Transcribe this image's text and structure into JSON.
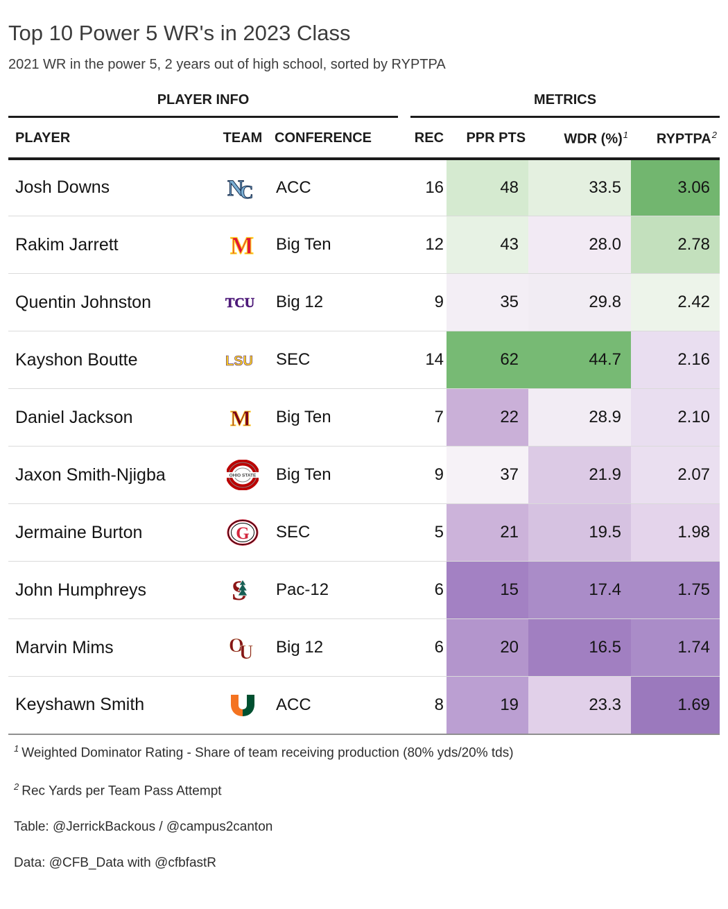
{
  "title": "Top 10 Power 5 WR's in 2023 Class",
  "subtitle": "2021 WR in the power 5, 2 years out of high school, sorted by RYPTPA",
  "table": {
    "group_headers": [
      {
        "id": "player-info",
        "label": "PLAYER INFO"
      },
      {
        "id": "metrics",
        "label": "METRICS"
      }
    ],
    "columns": [
      {
        "id": "player",
        "label": "PLAYER"
      },
      {
        "id": "team",
        "label": "TEAM"
      },
      {
        "id": "conference",
        "label": "CONFERENCE"
      },
      {
        "id": "rec",
        "label": "REC"
      },
      {
        "id": "ppr_pts",
        "label": "PPR PTS"
      },
      {
        "id": "wdr",
        "label": "WDR (%)",
        "sup": "1"
      },
      {
        "id": "ryptpa",
        "label": "RYPTPA",
        "sup": "2"
      }
    ],
    "rows": [
      {
        "player": "Josh Downs",
        "team": "North Carolina",
        "logo": "unc-logo",
        "conference": "ACC",
        "rec": "16",
        "ppr_pts": "48",
        "ppr_bg": "#d5ead0",
        "wdr": "33.5",
        "wdr_bg": "#e4f0e0",
        "ryptpa": "3.06",
        "ryptpa_bg": "#72b66f"
      },
      {
        "player": "Rakim Jarrett",
        "team": "Maryland",
        "logo": "maryland-logo",
        "conference": "Big Ten",
        "rec": "12",
        "ppr_pts": "43",
        "ppr_bg": "#e7f2e4",
        "wdr": "28.0",
        "wdr_bg": "#f2eaf4",
        "ryptpa": "2.78",
        "ryptpa_bg": "#c3e0bd"
      },
      {
        "player": "Quentin Johnston",
        "team": "TCU",
        "logo": "tcu-logo",
        "conference": "Big 12",
        "rec": "9",
        "ppr_pts": "35",
        "ppr_bg": "#f3eef5",
        "wdr": "29.8",
        "wdr_bg": "#f1ecf3",
        "ryptpa": "2.42",
        "ryptpa_bg": "#edf4ea"
      },
      {
        "player": "Kayshon Boutte",
        "team": "LSU",
        "logo": "lsu-logo",
        "conference": "SEC",
        "rec": "14",
        "ppr_pts": "62",
        "ppr_bg": "#77ba74",
        "wdr": "44.7",
        "wdr_bg": "#77ba74",
        "ryptpa": "2.16",
        "ryptpa_bg": "#e9def0"
      },
      {
        "player": "Daniel Jackson",
        "team": "Minnesota",
        "logo": "minnesota-logo",
        "conference": "Big Ten",
        "rec": "7",
        "ppr_pts": "22",
        "ppr_bg": "#cab0d8",
        "wdr": "28.9",
        "wdr_bg": "#f2ecf4",
        "ryptpa": "2.10",
        "ryptpa_bg": "#e9def0"
      },
      {
        "player": "Jaxon Smith-Njigba",
        "team": "Ohio State",
        "logo": "ohio-state-logo",
        "conference": "Big Ten",
        "rec": "9",
        "ppr_pts": "37",
        "ppr_bg": "#f6f2f7",
        "wdr": "21.9",
        "wdr_bg": "#dccae5",
        "ryptpa": "2.07",
        "ryptpa_bg": "#eadff0"
      },
      {
        "player": "Jermaine Burton",
        "team": "Georgia",
        "logo": "georgia-logo",
        "conference": "SEC",
        "rec": "5",
        "ppr_pts": "21",
        "ppr_bg": "#ccb3da",
        "wdr": "19.5",
        "wdr_bg": "#d6c2e1",
        "ryptpa": "1.98",
        "ryptpa_bg": "#e4d4eb"
      },
      {
        "player": "John Humphreys",
        "team": "Stanford",
        "logo": "stanford-logo",
        "conference": "Pac-12",
        "rec": "6",
        "ppr_pts": "15",
        "ppr_bg": "#a381c3",
        "wdr": "17.4",
        "wdr_bg": "#aa8cc8",
        "ryptpa": "1.75",
        "ryptpa_bg": "#aa8cc8"
      },
      {
        "player": "Marvin Mims",
        "team": "Oklahoma",
        "logo": "oklahoma-logo",
        "conference": "Big 12",
        "rec": "6",
        "ppr_pts": "20",
        "ppr_bg": "#b395cc",
        "wdr": "16.5",
        "wdr_bg": "#a17fc1",
        "ryptpa": "1.74",
        "ryptpa_bg": "#aa8cc8"
      },
      {
        "player": "Keyshawn Smith",
        "team": "Miami",
        "logo": "miami-logo",
        "conference": "ACC",
        "rec": "8",
        "ppr_pts": "19",
        "ppr_bg": "#bb9fd2",
        "wdr": "23.3",
        "wdr_bg": "#e1d0e9",
        "ryptpa": "1.69",
        "ryptpa_bg": "#9b79bd"
      }
    ]
  },
  "footnotes": [
    {
      "sup": "1",
      "text": "Weighted Dominator Rating - Share of team receiving production (80% yds/20% tds)"
    },
    {
      "sup": "2",
      "text": "Rec Yards per Team Pass Attempt"
    },
    {
      "text": "Table: @JerrickBackous / @campus2canton"
    },
    {
      "text": "Data: @CFB_Data with @cfbfastR"
    }
  ],
  "chart_data": {
    "type": "table",
    "title": "Top 10 Power 5 WR's in 2023 Class",
    "subtitle": "2021 WR in the power 5, 2 years out of high school, sorted by RYPTPA",
    "column_groups": [
      "PLAYER INFO",
      "METRICS"
    ],
    "columns": [
      "PLAYER",
      "TEAM",
      "CONFERENCE",
      "REC",
      "PPR PTS",
      "WDR (%)",
      "RYPTPA"
    ],
    "rows": [
      [
        "Josh Downs",
        "North Carolina",
        "ACC",
        16,
        48,
        33.5,
        3.06
      ],
      [
        "Rakim Jarrett",
        "Maryland",
        "Big Ten",
        12,
        43,
        28.0,
        2.78
      ],
      [
        "Quentin Johnston",
        "TCU",
        "Big 12",
        9,
        35,
        29.8,
        2.42
      ],
      [
        "Kayshon Boutte",
        "LSU",
        "SEC",
        14,
        62,
        44.7,
        2.16
      ],
      [
        "Daniel Jackson",
        "Minnesota",
        "Big Ten",
        7,
        22,
        28.9,
        2.1
      ],
      [
        "Jaxon Smith-Njigba",
        "Ohio State",
        "Big Ten",
        9,
        37,
        21.9,
        2.07
      ],
      [
        "Jermaine Burton",
        "Georgia",
        "SEC",
        5,
        21,
        19.5,
        1.98
      ],
      [
        "John Humphreys",
        "Stanford",
        "Pac-12",
        6,
        15,
        17.4,
        1.75
      ],
      [
        "Marvin Mims",
        "Oklahoma",
        "Big 12",
        6,
        20,
        16.5,
        1.74
      ],
      [
        "Keyshawn Smith",
        "Miami",
        "ACC",
        8,
        19,
        23.3,
        1.69
      ]
    ],
    "heatmap_columns": [
      "PPR PTS",
      "WDR (%)",
      "RYPTPA"
    ],
    "heatmap_scale": {
      "high": "#77ba74",
      "mid": "#f7f4f8",
      "low": "#9b79bd"
    },
    "sort": {
      "by": "RYPTPA",
      "order": "desc"
    }
  }
}
